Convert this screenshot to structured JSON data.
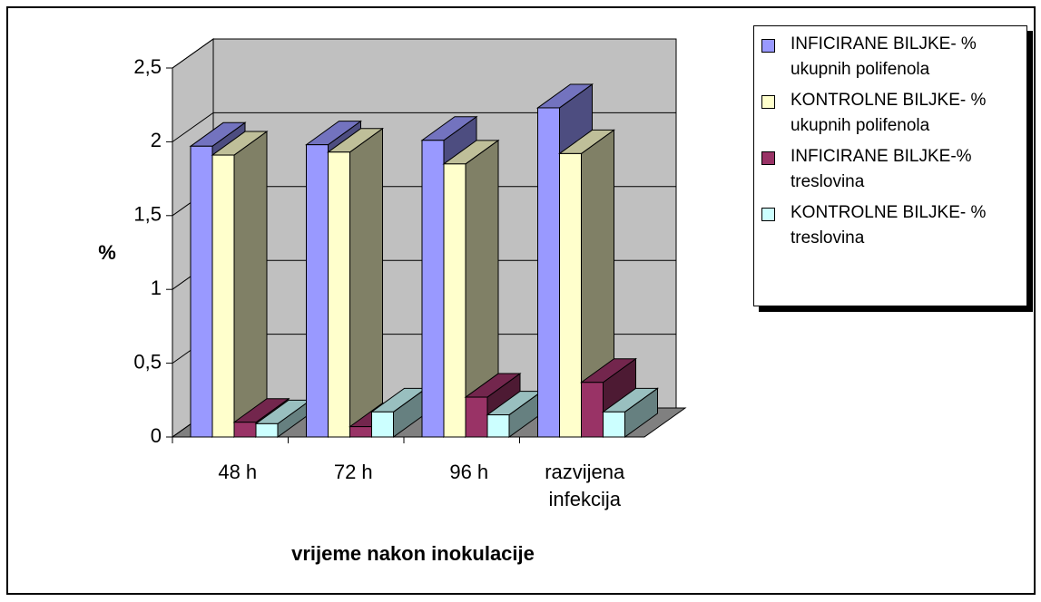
{
  "chart_data": {
    "type": "bar3d",
    "x_label": "vrijeme nakon inokulacije",
    "y_label": "%",
    "categories": [
      "48 h",
      "72 h",
      "96 h",
      "razvijena infekcija"
    ],
    "series": [
      {
        "name": "INFICIRANE BILJKE- % ukupnih polifenola",
        "color": "#9999ff",
        "values": [
          1.97,
          1.98,
          2.01,
          2.23
        ]
      },
      {
        "name": "KONTROLNE BILJKE- % ukupnih polifenola",
        "color": "#ffffcc",
        "values": [
          1.91,
          1.93,
          1.85,
          1.92
        ]
      },
      {
        "name": "INFICIRANE BILJKE-% treslovina",
        "color": "#993366",
        "values": [
          0.1,
          0.07,
          0.27,
          0.37
        ]
      },
      {
        "name": "KONTROLNE BILJKE- % treslovina",
        "color": "#ccffff",
        "values": [
          0.09,
          0.17,
          0.15,
          0.17
        ]
      }
    ],
    "ylim": [
      0,
      2.5
    ],
    "yticks": [
      0,
      {
        "value": 0.5,
        "label": "0,5"
      },
      1,
      {
        "value": 1.5,
        "label": "1,5"
      },
      2,
      {
        "value": 2.5,
        "label": "2,5"
      }
    ],
    "grid": true,
    "legend": "right"
  }
}
